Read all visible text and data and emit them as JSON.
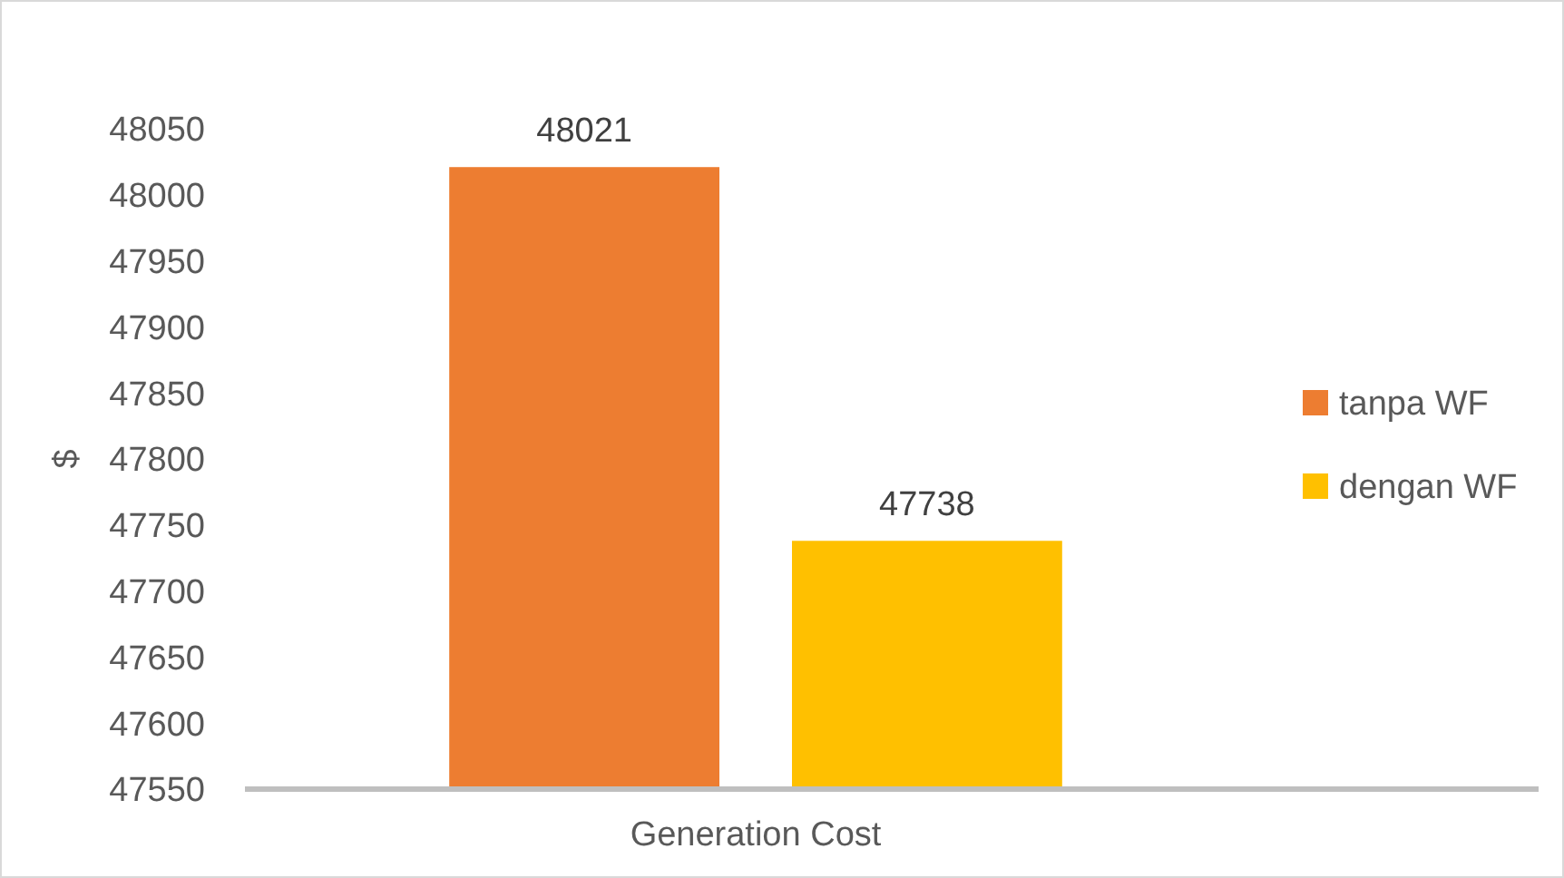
{
  "chart_data": {
    "type": "bar",
    "categories": [
      "Generation Cost"
    ],
    "ylabel": "$",
    "series": [
      {
        "name": "tanpa WF",
        "color": "#ed7d31",
        "values": [
          48021
        ]
      },
      {
        "name": "dengan WF",
        "color": "#ffc000",
        "values": [
          47738
        ]
      }
    ],
    "ylim": [
      47550,
      48050
    ],
    "yticks": [
      47550,
      47600,
      47650,
      47700,
      47750,
      47800,
      47850,
      47900,
      47950,
      48000,
      48050
    ],
    "data_labels": true,
    "legend": "right",
    "grid": false
  }
}
